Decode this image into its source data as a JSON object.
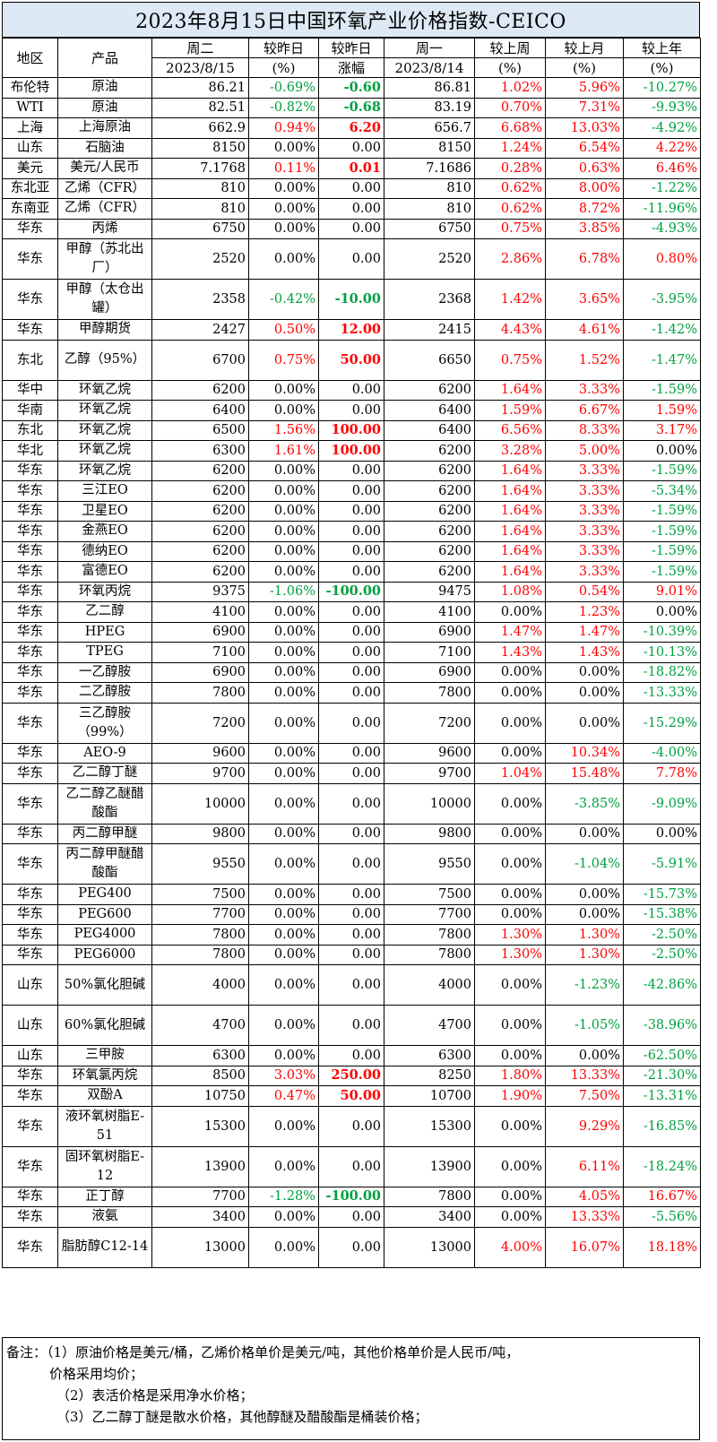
{
  "title": "2023年8月15日中国环氧产业价格指数-CEICO",
  "headers": {
    "region": "地区",
    "product": "产品",
    "today": "周二",
    "today_date": "2023/8/15",
    "dod_pct": "较昨日",
    "dod_pct_unit": "(%)",
    "dod_amt": "较昨日",
    "dod_amt_unit": "涨幅",
    "prev": "周一",
    "prev_date": "2023/8/14",
    "wow": "较上周",
    "wow_unit": "(%)",
    "mom": "较上月",
    "mom_unit": "(%)",
    "yoy": "较上年",
    "yoy_unit": "(%)"
  },
  "colors": {
    "up": "#ff0000",
    "down": "#00a040",
    "flat": "#000000",
    "title_bg": "#dde9f4"
  },
  "rows": [
    {
      "region": "布伦特",
      "product": "原油",
      "today": "86.21",
      "dod_pct": "-0.69%",
      "dod_amt": "-0.60",
      "prev": "86.81",
      "wow": "1.02%",
      "mom": "5.96%",
      "yoy": "-10.27%"
    },
    {
      "region": "WTI",
      "product": "原油",
      "today": "82.51",
      "dod_pct": "-0.82%",
      "dod_amt": "-0.68",
      "prev": "83.19",
      "wow": "0.70%",
      "mom": "7.31%",
      "yoy": "-9.93%"
    },
    {
      "region": "上海",
      "product": "上海原油",
      "today": "662.9",
      "dod_pct": "0.94%",
      "dod_amt": "6.20",
      "prev": "656.7",
      "wow": "6.68%",
      "mom": "13.03%",
      "yoy": "-4.92%"
    },
    {
      "region": "山东",
      "product": "石脑油",
      "today": "8150",
      "dod_pct": "0.00%",
      "dod_amt": "0.00",
      "prev": "8150",
      "wow": "1.24%",
      "mom": "6.54%",
      "yoy": "4.22%"
    },
    {
      "region": "美元",
      "product": "美元/人民币",
      "today": "7.1768",
      "dod_pct": "0.11%",
      "dod_amt": "0.01",
      "prev": "7.1686",
      "wow": "0.28%",
      "mom": "0.63%",
      "yoy": "6.46%"
    },
    {
      "region": "东北亚",
      "product": "乙烯（CFR）",
      "today": "810",
      "dod_pct": "0.00%",
      "dod_amt": "0.00",
      "prev": "810",
      "wow": "0.62%",
      "mom": "8.00%",
      "yoy": "-1.22%"
    },
    {
      "region": "东南亚",
      "product": "乙烯（CFR）",
      "today": "810",
      "dod_pct": "0.00%",
      "dod_amt": "0.00",
      "prev": "810",
      "wow": "0.62%",
      "mom": "8.72%",
      "yoy": "-11.96%"
    },
    {
      "region": "华东",
      "product": "丙烯",
      "today": "6750",
      "dod_pct": "0.00%",
      "dod_amt": "0.00",
      "prev": "6750",
      "wow": "0.75%",
      "mom": "3.85%",
      "yoy": "-4.93%"
    },
    {
      "region": "华东",
      "product": "甲醇（苏北出厂）",
      "today": "2520",
      "dod_pct": "0.00%",
      "dod_amt": "0.00",
      "prev": "2520",
      "wow": "2.86%",
      "mom": "6.78%",
      "yoy": "0.80%",
      "tall": true
    },
    {
      "region": "华东",
      "product": "甲醇（太仓出罐）",
      "today": "2358",
      "dod_pct": "-0.42%",
      "dod_amt": "-10.00",
      "prev": "2368",
      "wow": "1.42%",
      "mom": "3.65%",
      "yoy": "-3.95%",
      "tall": true
    },
    {
      "region": "华东",
      "product": "甲醇期货",
      "today": "2427",
      "dod_pct": "0.50%",
      "dod_amt": "12.00",
      "prev": "2415",
      "wow": "4.43%",
      "mom": "4.61%",
      "yoy": "-1.42%"
    },
    {
      "region": "东北",
      "product": "乙醇（95%）",
      "today": "6700",
      "dod_pct": "0.75%",
      "dod_amt": "50.00",
      "prev": "6650",
      "wow": "0.75%",
      "mom": "1.52%",
      "yoy": "-1.47%",
      "tall": true
    },
    {
      "region": "华中",
      "product": "环氧乙烷",
      "today": "6200",
      "dod_pct": "0.00%",
      "dod_amt": "0.00",
      "prev": "6200",
      "wow": "1.64%",
      "mom": "3.33%",
      "yoy": "-1.59%"
    },
    {
      "region": "华南",
      "product": "环氧乙烷",
      "today": "6400",
      "dod_pct": "0.00%",
      "dod_amt": "0.00",
      "prev": "6400",
      "wow": "1.59%",
      "mom": "6.67%",
      "yoy": "1.59%"
    },
    {
      "region": "东北",
      "product": "环氧乙烷",
      "today": "6500",
      "dod_pct": "1.56%",
      "dod_amt": "100.00",
      "prev": "6400",
      "wow": "6.56%",
      "mom": "8.33%",
      "yoy": "3.17%"
    },
    {
      "region": "华北",
      "product": "环氧乙烷",
      "today": "6300",
      "dod_pct": "1.61%",
      "dod_amt": "100.00",
      "prev": "6200",
      "wow": "3.28%",
      "mom": "5.00%",
      "yoy": "0.00%"
    },
    {
      "region": "华东",
      "product": "环氧乙烷",
      "today": "6200",
      "dod_pct": "0.00%",
      "dod_amt": "0.00",
      "prev": "6200",
      "wow": "1.64%",
      "mom": "3.33%",
      "yoy": "-1.59%"
    },
    {
      "region": "华东",
      "product": "三江EO",
      "today": "6200",
      "dod_pct": "0.00%",
      "dod_amt": "0.00",
      "prev": "6200",
      "wow": "1.64%",
      "mom": "3.33%",
      "yoy": "-5.34%"
    },
    {
      "region": "华东",
      "product": "卫星EO",
      "today": "6200",
      "dod_pct": "0.00%",
      "dod_amt": "0.00",
      "prev": "6200",
      "wow": "1.64%",
      "mom": "3.33%",
      "yoy": "-1.59%"
    },
    {
      "region": "华东",
      "product": "金燕EO",
      "today": "6200",
      "dod_pct": "0.00%",
      "dod_amt": "0.00",
      "prev": "6200",
      "wow": "1.64%",
      "mom": "3.33%",
      "yoy": "-1.59%"
    },
    {
      "region": "华东",
      "product": "德纳EO",
      "today": "6200",
      "dod_pct": "0.00%",
      "dod_amt": "0.00",
      "prev": "6200",
      "wow": "1.64%",
      "mom": "3.33%",
      "yoy": "-1.59%"
    },
    {
      "region": "华东",
      "product": "富德EO",
      "today": "6200",
      "dod_pct": "0.00%",
      "dod_amt": "0.00",
      "prev": "6200",
      "wow": "1.64%",
      "mom": "3.33%",
      "yoy": "-1.59%"
    },
    {
      "region": "华东",
      "product": "环氧丙烷",
      "today": "9375",
      "dod_pct": "-1.06%",
      "dod_amt": "-100.00",
      "prev": "9475",
      "wow": "1.08%",
      "mom": "0.54%",
      "yoy": "9.01%"
    },
    {
      "region": "华东",
      "product": "乙二醇",
      "today": "4100",
      "dod_pct": "0.00%",
      "dod_amt": "0.00",
      "prev": "4100",
      "wow": "0.00%",
      "mom": "1.23%",
      "yoy": "0.00%"
    },
    {
      "region": "华东",
      "product": "HPEG",
      "today": "6900",
      "dod_pct": "0.00%",
      "dod_amt": "0.00",
      "prev": "6900",
      "wow": "1.47%",
      "mom": "1.47%",
      "yoy": "-10.39%"
    },
    {
      "region": "华东",
      "product": "TPEG",
      "today": "7100",
      "dod_pct": "0.00%",
      "dod_amt": "0.00",
      "prev": "7100",
      "wow": "1.43%",
      "mom": "1.43%",
      "yoy": "-10.13%"
    },
    {
      "region": "华东",
      "product": "一乙醇胺",
      "today": "6900",
      "dod_pct": "0.00%",
      "dod_amt": "0.00",
      "prev": "6900",
      "wow": "0.00%",
      "mom": "0.00%",
      "yoy": "-18.82%"
    },
    {
      "region": "华东",
      "product": "二乙醇胺",
      "today": "7800",
      "dod_pct": "0.00%",
      "dod_amt": "0.00",
      "prev": "7800",
      "wow": "0.00%",
      "mom": "0.00%",
      "yoy": "-13.33%"
    },
    {
      "region": "华东",
      "product": "三乙醇胺（99%）",
      "today": "7200",
      "dod_pct": "0.00%",
      "dod_amt": "0.00",
      "prev": "7200",
      "wow": "0.00%",
      "mom": "0.00%",
      "yoy": "-15.29%",
      "tall": true
    },
    {
      "region": "华东",
      "product": "AEO-9",
      "today": "9600",
      "dod_pct": "0.00%",
      "dod_amt": "0.00",
      "prev": "9600",
      "wow": "0.00%",
      "mom": "10.34%",
      "yoy": "-4.00%"
    },
    {
      "region": "华东",
      "product": "乙二醇丁醚",
      "today": "9700",
      "dod_pct": "0.00%",
      "dod_amt": "0.00",
      "prev": "9700",
      "wow": "1.04%",
      "mom": "15.48%",
      "yoy": "7.78%"
    },
    {
      "region": "华东",
      "product": "乙二醇乙醚醋酸酯",
      "today": "10000",
      "dod_pct": "0.00%",
      "dod_amt": "0.00",
      "prev": "10000",
      "wow": "0.00%",
      "mom": "-3.85%",
      "yoy": "-9.09%",
      "tall": true
    },
    {
      "region": "华东",
      "product": "丙二醇甲醚",
      "today": "9800",
      "dod_pct": "0.00%",
      "dod_amt": "0.00",
      "prev": "9800",
      "wow": "0.00%",
      "mom": "0.00%",
      "yoy": "0.00%"
    },
    {
      "region": "华东",
      "product": "丙二醇甲醚醋酸酯",
      "today": "9550",
      "dod_pct": "0.00%",
      "dod_amt": "0.00",
      "prev": "9550",
      "wow": "0.00%",
      "mom": "-1.04%",
      "yoy": "-5.91%",
      "tall": true
    },
    {
      "region": "华东",
      "product": "PEG400",
      "today": "7500",
      "dod_pct": "0.00%",
      "dod_amt": "0.00",
      "prev": "7500",
      "wow": "0.00%",
      "mom": "0.00%",
      "yoy": "-15.73%"
    },
    {
      "region": "华东",
      "product": "PEG600",
      "today": "7700",
      "dod_pct": "0.00%",
      "dod_amt": "0.00",
      "prev": "7700",
      "wow": "0.00%",
      "mom": "0.00%",
      "yoy": "-15.38%"
    },
    {
      "region": "华东",
      "product": "PEG4000",
      "today": "7800",
      "dod_pct": "0.00%",
      "dod_amt": "0.00",
      "prev": "7800",
      "wow": "1.30%",
      "mom": "1.30%",
      "yoy": "-2.50%"
    },
    {
      "region": "华东",
      "product": "PEG6000",
      "today": "7800",
      "dod_pct": "0.00%",
      "dod_amt": "0.00",
      "prev": "7800",
      "wow": "1.30%",
      "mom": "1.30%",
      "yoy": "-2.50%"
    },
    {
      "region": "山东",
      "product": "50%氯化胆碱",
      "today": "4000",
      "dod_pct": "0.00%",
      "dod_amt": "0.00",
      "prev": "4000",
      "wow": "0.00%",
      "mom": "-1.23%",
      "yoy": "-42.86%",
      "tall": true
    },
    {
      "region": "山东",
      "product": "60%氯化胆碱",
      "today": "4700",
      "dod_pct": "0.00%",
      "dod_amt": "0.00",
      "prev": "4700",
      "wow": "0.00%",
      "mom": "-1.05%",
      "yoy": "-38.96%",
      "tall": true
    },
    {
      "region": "山东",
      "product": "三甲胺",
      "today": "6300",
      "dod_pct": "0.00%",
      "dod_amt": "0.00",
      "prev": "6300",
      "wow": "0.00%",
      "mom": "0.00%",
      "yoy": "-62.50%"
    },
    {
      "region": "华东",
      "product": "环氧氯丙烷",
      "today": "8500",
      "dod_pct": "3.03%",
      "dod_amt": "250.00",
      "prev": "8250",
      "wow": "1.80%",
      "mom": "13.33%",
      "yoy": "-21.30%"
    },
    {
      "region": "华东",
      "product": "双酚A",
      "today": "10750",
      "dod_pct": "0.47%",
      "dod_amt": "50.00",
      "prev": "10700",
      "wow": "1.90%",
      "mom": "7.50%",
      "yoy": "-13.31%"
    },
    {
      "region": "华东",
      "product": "液环氧树脂E-51",
      "today": "15300",
      "dod_pct": "0.00%",
      "dod_amt": "0.00",
      "prev": "15300",
      "wow": "0.00%",
      "mom": "9.29%",
      "yoy": "-16.85%",
      "tall": true
    },
    {
      "region": "华东",
      "product": "固环氧树脂E-12",
      "today": "13900",
      "dod_pct": "0.00%",
      "dod_amt": "0.00",
      "prev": "13900",
      "wow": "0.00%",
      "mom": "6.11%",
      "yoy": "-18.24%",
      "tall": true
    },
    {
      "region": "华东",
      "product": "正丁醇",
      "today": "7700",
      "dod_pct": "-1.28%",
      "dod_amt": "-100.00",
      "prev": "7800",
      "wow": "0.00%",
      "mom": "4.05%",
      "yoy": "16.67%"
    },
    {
      "region": "华东",
      "product": "液氨",
      "today": "3400",
      "dod_pct": "0.00%",
      "dod_amt": "0.00",
      "prev": "3400",
      "wow": "0.00%",
      "mom": "13.33%",
      "yoy": "-5.56%"
    },
    {
      "region": "华东",
      "product": "脂肪醇C12-14",
      "today": "13000",
      "dod_pct": "0.00%",
      "dod_amt": "0.00",
      "prev": "13000",
      "wow": "4.00%",
      "mom": "16.07%",
      "yoy": "18.18%",
      "tall": true
    }
  ],
  "notes": [
    "备注：（1）原油价格是美元/桶，乙烯价格单价是美元/吨，其他价格单价是人民币/吨，",
    "价格采用均价；",
    "（2）表活价格是采用净水价格；",
    "（3）乙二醇丁醚是散水价格，其他醇醚及醋酸酯是桶装价格；"
  ]
}
